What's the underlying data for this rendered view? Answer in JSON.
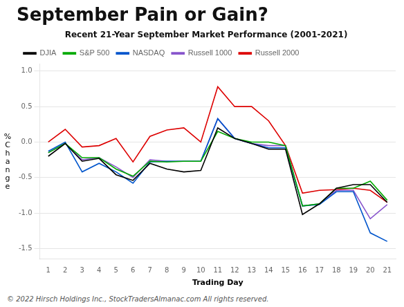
{
  "chart_data": {
    "type": "line",
    "title": "September Pain or Gain?",
    "subtitle": "Recent 21-Year September Market Performance (2001-2021)",
    "xlabel": "Trading Day",
    "ylabel": "%\nC\nh\na\nn\ng\ne",
    "footer": "© 2022 Hirsch Holdings Inc., StockTradersAlmanac.com  All rights reserved.",
    "x": [
      1,
      2,
      3,
      4,
      5,
      6,
      7,
      8,
      9,
      10,
      11,
      12,
      13,
      14,
      15,
      16,
      17,
      18,
      19,
      20,
      21
    ],
    "xlim": [
      0.5,
      21.5
    ],
    "xticks": [
      1,
      2,
      3,
      4,
      5,
      6,
      7,
      8,
      9,
      10,
      11,
      12,
      13,
      14,
      15,
      16,
      17,
      18,
      19,
      20,
      21
    ],
    "ylim": [
      -1.65,
      1.1
    ],
    "yticks": [
      -1.5,
      {
        "value": -1.0,
        "label": "-1.0"
      },
      -0.5,
      {
        "value": 0.0,
        "label": "0.0"
      },
      0.5,
      {
        "value": 1.0,
        "label": "1.0"
      }
    ],
    "grid": "y",
    "legend": "upper left",
    "series": [
      {
        "name": "DJIA",
        "color": "#000000",
        "values": [
          -0.2,
          -0.02,
          -0.27,
          -0.23,
          -0.46,
          -0.54,
          -0.3,
          -0.38,
          -0.42,
          -0.4,
          0.2,
          0.05,
          -0.02,
          -0.1,
          -0.1,
          -1.02,
          -0.87,
          -0.65,
          -0.6,
          -0.6,
          -0.85
        ]
      },
      {
        "name": "S&P 500",
        "color": "#00aa00",
        "values": [
          -0.15,
          -0.02,
          -0.22,
          -0.22,
          -0.38,
          -0.48,
          -0.27,
          -0.28,
          -0.27,
          -0.27,
          0.15,
          0.05,
          0.0,
          0.0,
          -0.05,
          -0.9,
          -0.87,
          -0.65,
          -0.65,
          -0.55,
          -0.82
        ]
      },
      {
        "name": "NASDAQ",
        "color": "#0055cc",
        "values": [
          -0.13,
          0.0,
          -0.42,
          -0.3,
          -0.42,
          -0.58,
          -0.28,
          -0.27,
          -0.27,
          -0.27,
          0.33,
          0.05,
          -0.02,
          -0.08,
          -0.08,
          -0.9,
          -0.88,
          -0.7,
          -0.7,
          -1.28,
          -1.4
        ]
      },
      {
        "name": "Russell 1000",
        "color": "#8855cc",
        "values": [
          -0.15,
          -0.02,
          -0.25,
          -0.22,
          -0.35,
          -0.5,
          -0.25,
          -0.27,
          -0.27,
          -0.27,
          0.33,
          0.05,
          -0.02,
          -0.05,
          -0.05,
          -0.9,
          -0.87,
          -0.68,
          -0.68,
          -1.08,
          -0.88
        ]
      },
      {
        "name": "Russell 2000",
        "color": "#dd0000",
        "values": [
          0.0,
          0.18,
          -0.07,
          -0.05,
          0.05,
          -0.28,
          0.08,
          0.17,
          0.2,
          0.0,
          0.78,
          0.5,
          0.5,
          0.3,
          -0.05,
          -0.72,
          -0.68,
          -0.67,
          -0.65,
          -0.68,
          -0.85
        ]
      }
    ]
  }
}
